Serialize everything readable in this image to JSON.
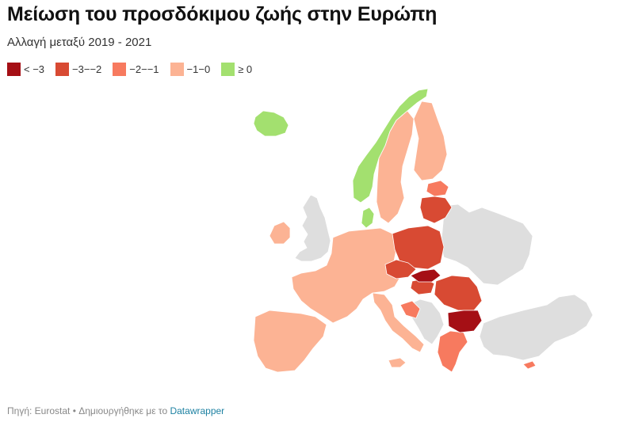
{
  "title": "Μείωση του προσδόκιμου ζωής στην Ευρώπη",
  "subtitle": "Αλλαγή μεταξύ 2019 - 2021",
  "legend": [
    {
      "label": "< −3",
      "color": "#a50f15"
    },
    {
      "label": "−3−−2",
      "color": "#d84a33"
    },
    {
      "label": "−2−−1",
      "color": "#f77a5f"
    },
    {
      "label": "−1−0",
      "color": "#fcb394"
    },
    {
      "label": "≥ 0",
      "color": "#a3e06f"
    }
  ],
  "colors": {
    "no_data": "#dedede",
    "lt_minus3": "#a50f15",
    "minus3_minus2": "#d84a33",
    "minus2_minus1": "#f77a5f",
    "minus1_0": "#fcb394",
    "ge0": "#a3e06f"
  },
  "source": {
    "prefix": "Πηγή: Eurostat • Δημιουργήθηκε με το",
    "link": "Datawrapper"
  }
}
